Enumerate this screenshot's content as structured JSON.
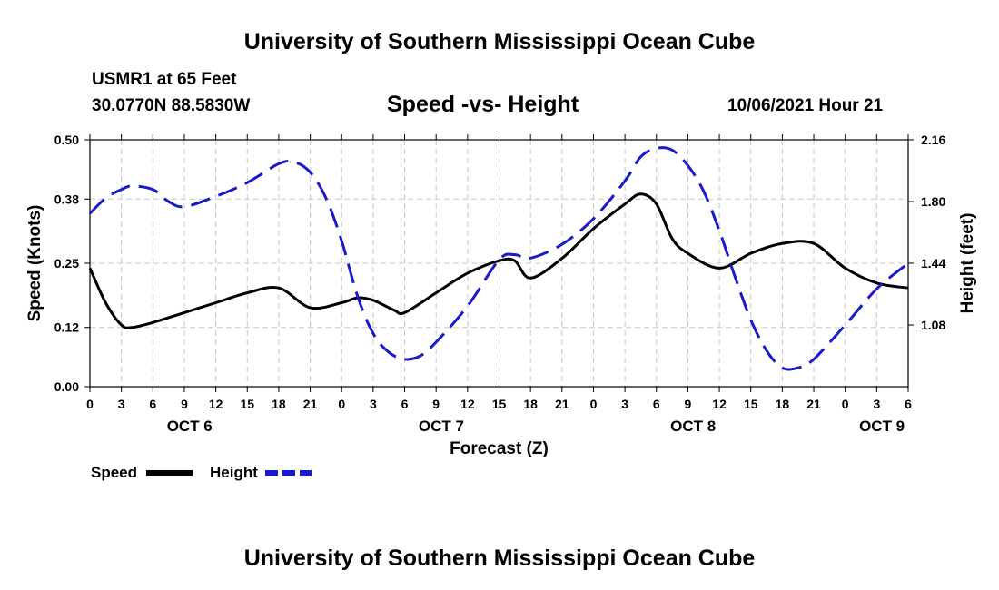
{
  "header": {
    "title": "University of Southern Mississippi Ocean Cube",
    "station": "USMR1 at 65 Feet",
    "coords": "30.0770N  88.5830W",
    "chart_title": "Speed -vs- Height",
    "timestamp": "10/06/2021 Hour 21"
  },
  "footer": {
    "title": "University of Southern Mississippi Ocean Cube"
  },
  "colors": {
    "speed": "#000000",
    "height": "#1a1acc",
    "grid": "#c8c8c8"
  },
  "chart_data": {
    "type": "line",
    "xlabel": "Forecast (Z)",
    "ylabel": "Speed (Knots)",
    "y2label": "Height (feet)",
    "x_range_hours": [
      0,
      78
    ],
    "ylim": [
      0,
      0.5
    ],
    "y2lim": [
      0.72,
      2.16
    ],
    "y_ticks": [
      "0.00",
      "0.12",
      "0.25",
      "0.38",
      "0.50"
    ],
    "y2_ticks": [
      "1.08",
      "1.44",
      "1.80",
      "2.16"
    ],
    "x_ticks": [
      "0",
      "3",
      "6",
      "9",
      "12",
      "15",
      "18",
      "21",
      "0",
      "3",
      "6",
      "9",
      "12",
      "15",
      "18",
      "21",
      "0",
      "3",
      "6",
      "9",
      "12",
      "15",
      "18",
      "21",
      "0",
      "3",
      "6"
    ],
    "day_labels": [
      {
        "label": "OCT 6",
        "hour": 9.5
      },
      {
        "label": "OCT 7",
        "hour": 33.5
      },
      {
        "label": "OCT 8",
        "hour": 57.5
      },
      {
        "label": "OCT 9",
        "hour": 75.5
      }
    ],
    "series": [
      {
        "name": "Speed",
        "axis": "left",
        "x": [
          0,
          1.5,
          3,
          4,
          6,
          9,
          12,
          15,
          18,
          21,
          24,
          25.5,
          27,
          29,
          30,
          33,
          36,
          39,
          40.5,
          42,
          45,
          48,
          51,
          52.5,
          54,
          55.5,
          57,
          60,
          63,
          66,
          69,
          72,
          75,
          78
        ],
        "y": [
          0.24,
          0.17,
          0.125,
          0.12,
          0.13,
          0.15,
          0.17,
          0.19,
          0.2,
          0.16,
          0.17,
          0.18,
          0.175,
          0.155,
          0.15,
          0.19,
          0.23,
          0.255,
          0.255,
          0.22,
          0.26,
          0.32,
          0.37,
          0.39,
          0.37,
          0.3,
          0.27,
          0.24,
          0.27,
          0.29,
          0.29,
          0.24,
          0.21,
          0.2
        ]
      },
      {
        "name": "Height",
        "axis": "right",
        "x": [
          0,
          1.5,
          3,
          4,
          6,
          7.5,
          9,
          12,
          15,
          18,
          19.5,
          21,
          22.5,
          24,
          25.5,
          27,
          28.5,
          30,
          31.5,
          33,
          36,
          39,
          40.5,
          42,
          45,
          48,
          51,
          52.5,
          54,
          55.5,
          57,
          58.5,
          60,
          61.5,
          63,
          64.5,
          66,
          67.5,
          69,
          72,
          75,
          78
        ],
        "y": [
          1.73,
          1.82,
          1.87,
          1.89,
          1.87,
          1.8,
          1.77,
          1.83,
          1.91,
          2.02,
          2.03,
          1.97,
          1.82,
          1.57,
          1.25,
          1.03,
          0.92,
          0.88,
          0.9,
          0.98,
          1.19,
          1.46,
          1.49,
          1.47,
          1.55,
          1.7,
          1.92,
          2.06,
          2.11,
          2.1,
          2.01,
          1.86,
          1.63,
          1.36,
          1.11,
          0.93,
          0.83,
          0.83,
          0.88,
          1.08,
          1.29,
          1.44
        ]
      }
    ],
    "legend": [
      {
        "label": "Speed"
      },
      {
        "label": "Height"
      }
    ],
    "legend_position": "bottom-left"
  }
}
